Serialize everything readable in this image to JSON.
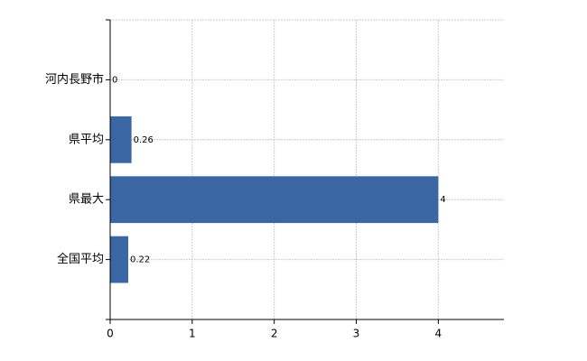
{
  "chart_data": {
    "type": "hbar",
    "categories": [
      "河内長野市",
      "県平均",
      "県最大",
      "全国平均"
    ],
    "values": [
      0,
      0.26,
      4,
      0.22
    ],
    "color": "#3a67a3",
    "xlim": [
      0,
      4.8
    ],
    "xticks": [
      0,
      1,
      2,
      3,
      4
    ],
    "grid": true
  }
}
